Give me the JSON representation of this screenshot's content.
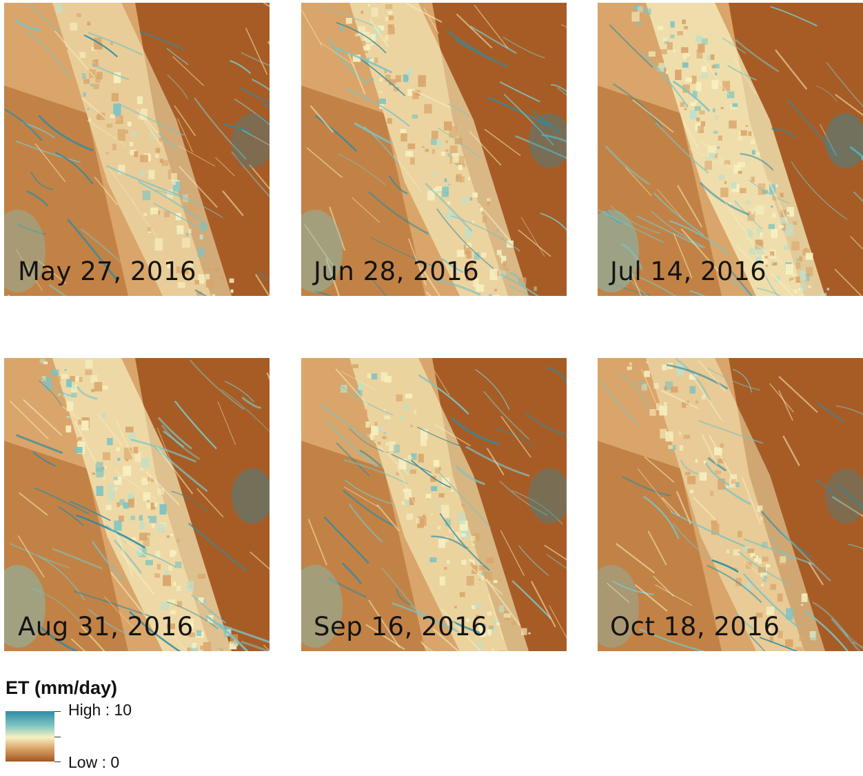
{
  "panels": [
    {
      "date": "May 27, 2016",
      "wet_fraction": 0.3,
      "palette_seed": 11
    },
    {
      "date": "Jun 28, 2016",
      "wet_fraction": 0.45,
      "palette_seed": 23
    },
    {
      "date": "Jul 14, 2016",
      "wet_fraction": 0.65,
      "palette_seed": 37
    },
    {
      "date": "Aug 31, 2016",
      "wet_fraction": 0.55,
      "palette_seed": 41
    },
    {
      "date": "Sep 16, 2016",
      "wet_fraction": 0.42,
      "palette_seed": 53
    },
    {
      "date": "Oct 18, 2016",
      "wet_fraction": 0.25,
      "palette_seed": 67
    }
  ],
  "legend": {
    "title": "ET (mm/day)",
    "high_label": "High : 10",
    "low_label": "Low : 0",
    "colors": {
      "high": "#2e8ba3",
      "mid_high": "#7cc3c2",
      "mid": "#f7f1c2",
      "mid_low": "#d9a56a",
      "low": "#a4561f"
    }
  }
}
